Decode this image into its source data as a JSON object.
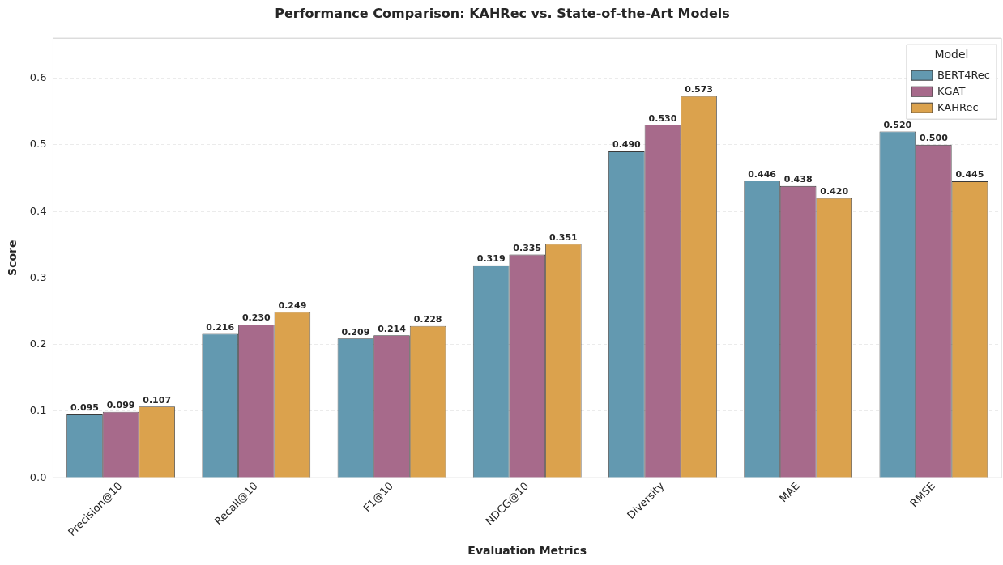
{
  "chart_data": {
    "type": "bar",
    "title": "Performance Comparison: KAHRec vs. State-of-the-Art Models",
    "xlabel": "Evaluation Metrics",
    "ylabel": "Score",
    "legend_title": "Model",
    "categories": [
      "Precision@10",
      "Recall@10",
      "F1@10",
      "NDCG@10",
      "Diversity",
      "MAE",
      "RMSE"
    ],
    "series": [
      {
        "name": "BERT4Rec",
        "color": "#6399b0",
        "values": [
          0.095,
          0.216,
          0.209,
          0.319,
          0.49,
          0.446,
          0.52
        ],
        "value_labels": [
          "0.095",
          "0.216",
          "0.209",
          "0.319",
          "0.490",
          "0.446",
          "0.520"
        ]
      },
      {
        "name": "KGAT",
        "color": "#a76a8b",
        "values": [
          0.099,
          0.23,
          0.214,
          0.335,
          0.53,
          0.438,
          0.5
        ],
        "value_labels": [
          "0.099",
          "0.230",
          "0.214",
          "0.335",
          "0.530",
          "0.438",
          "0.500"
        ]
      },
      {
        "name": "KAHRec",
        "color": "#dba24d",
        "values": [
          0.107,
          0.249,
          0.228,
          0.351,
          0.573,
          0.42,
          0.445
        ],
        "value_labels": [
          "0.107",
          "0.249",
          "0.228",
          "0.351",
          "0.573",
          "0.420",
          "0.445"
        ]
      }
    ],
    "ylim": [
      0,
      0.66
    ],
    "yticks": [
      {
        "value": 0,
        "label": "0.0"
      },
      {
        "value": 0.1,
        "label": "0.1"
      },
      {
        "value": 0.2,
        "label": "0.2"
      },
      {
        "value": 0.3,
        "label": "0.3"
      },
      {
        "value": 0.4,
        "label": "0.4"
      },
      {
        "value": 0.5,
        "label": "0.5"
      },
      {
        "value": 0.6,
        "label": "0.6"
      }
    ],
    "grid": "y",
    "legend": "top right"
  }
}
